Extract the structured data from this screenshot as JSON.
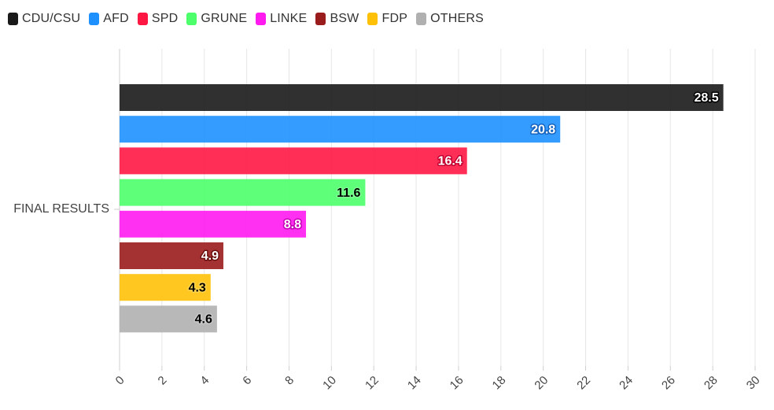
{
  "chart_data": {
    "type": "bar",
    "orientation": "horizontal",
    "categories": [
      "FINAL RESULTS"
    ],
    "series": [
      {
        "name": "CDU/CSU",
        "values": [
          28.5
        ],
        "color": "#1a1a1a",
        "label_color": "#ffffff",
        "label_outline": "#000000"
      },
      {
        "name": "AFD",
        "values": [
          20.8
        ],
        "color": "#1e90ff",
        "label_color": "#ffffff",
        "label_outline": "#1565c0"
      },
      {
        "name": "SPD",
        "values": [
          16.4
        ],
        "color": "#ff1744",
        "label_color": "#ffffff",
        "label_outline": "#c2002f"
      },
      {
        "name": "GRUNE",
        "values": [
          11.6
        ],
        "color": "#4dff6a",
        "label_color": "#000000",
        "label_outline": "#7dff92"
      },
      {
        "name": "LINKE",
        "values": [
          8.8
        ],
        "color": "#ff1af0",
        "label_color": "#ffffff",
        "label_outline": "#c400b4"
      },
      {
        "name": "BSW",
        "values": [
          4.9
        ],
        "color": "#9b1c1c",
        "label_color": "#ffffff",
        "label_outline": "#6b0f0f"
      },
      {
        "name": "FDP",
        "values": [
          4.3
        ],
        "color": "#ffc107",
        "label_color": "#000000",
        "label_outline": "#ffd54f"
      },
      {
        "name": "OTHERS",
        "values": [
          4.6
        ],
        "color": "#b0b0b0",
        "label_color": "#000000",
        "label_outline": "#c8c8c8"
      }
    ],
    "x_ticks": [
      "0",
      "2",
      "4",
      "6",
      "8",
      "10",
      "12",
      "14",
      "16",
      "18",
      "20",
      "22",
      "24",
      "26",
      "28",
      "30"
    ],
    "xlim": [
      0,
      30
    ],
    "title": "",
    "xlabel": "",
    "ylabel": "",
    "grid": true,
    "legend_position": "top-left"
  }
}
